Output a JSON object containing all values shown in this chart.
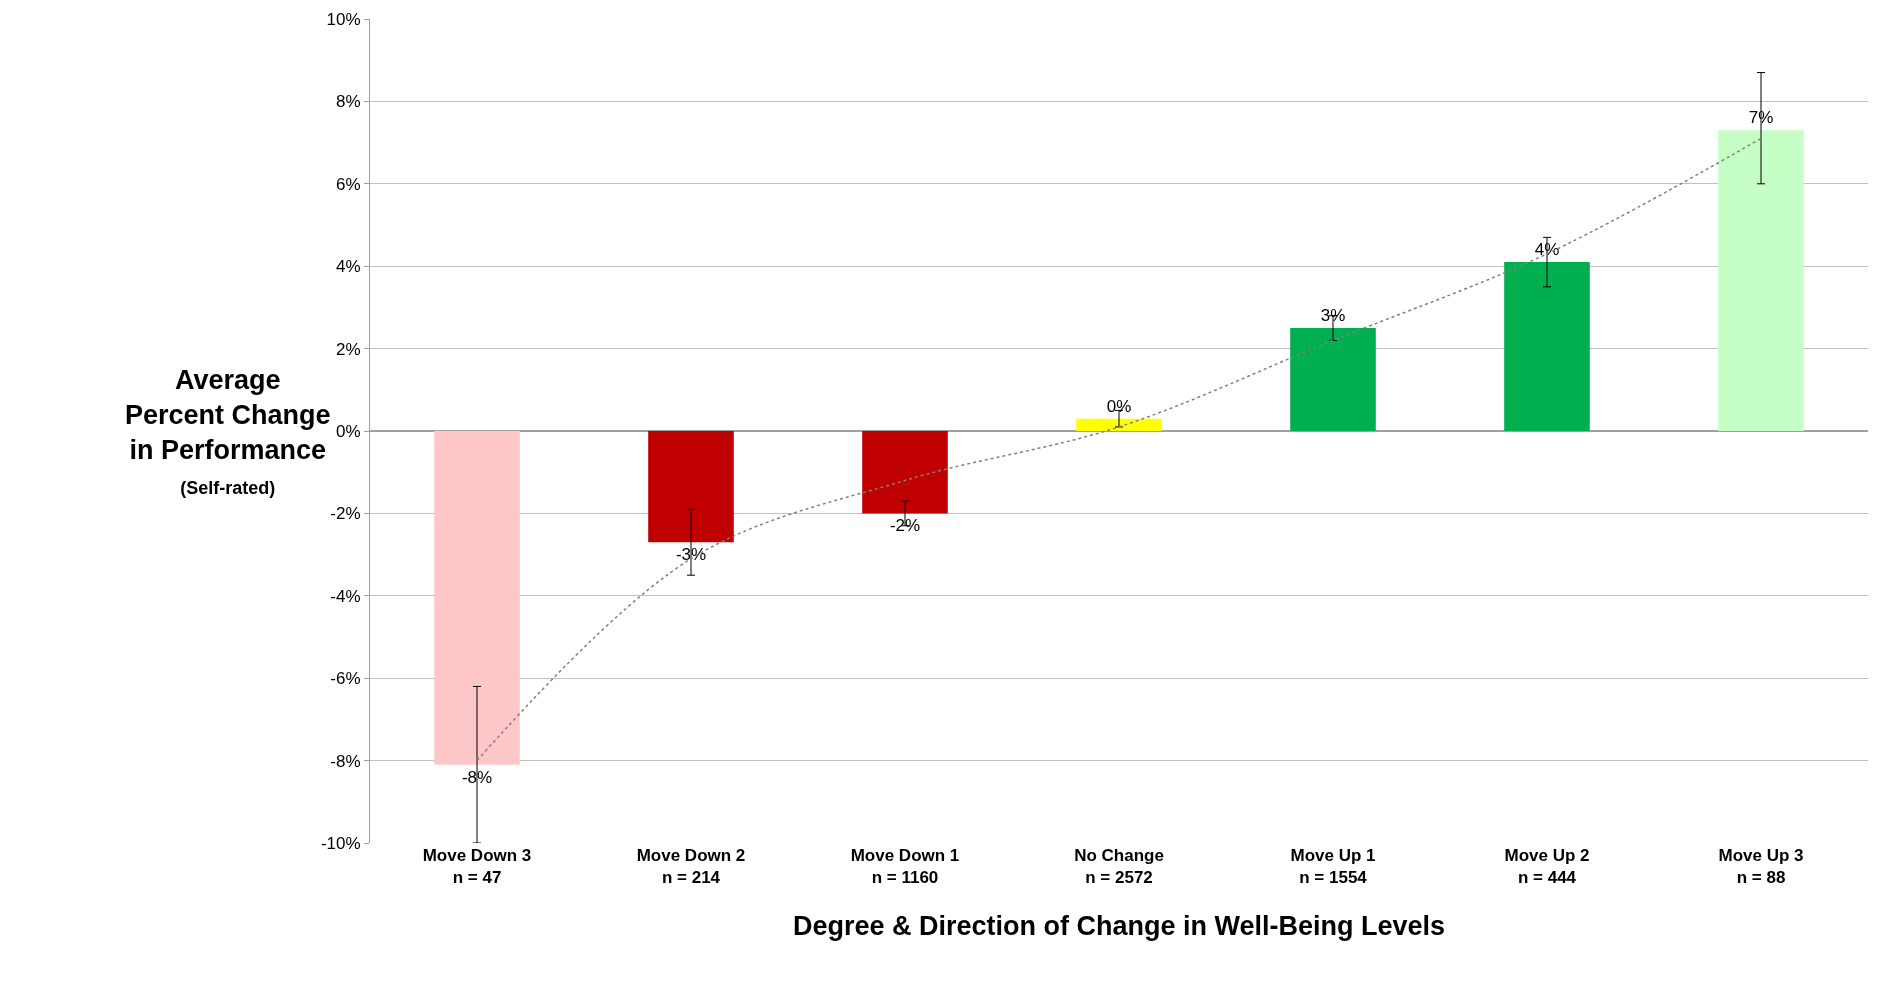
{
  "chart_data": {
    "type": "bar",
    "xlabel": "Degree & Direction of Change in Well-Being Levels",
    "ylabel": "Average\nPercent Change\nin Performance\n(Self-rated)",
    "categories": [
      "Move Down 3\nn = 47",
      "Move Down 2\nn = 214",
      "Move Down 1\nn = 1160",
      "No Change\nn = 2572",
      "Move Up 1\nn = 1554",
      "Move Up 2\nn = 444",
      "Move Up 3\nn = 88"
    ],
    "series": [
      {
        "colors": [
          "#ffc7c7",
          "#c00000",
          "#c00000",
          "#ffff00",
          "#00b050",
          "#00b050",
          "#c6ffc6"
        ],
        "values": [
          -8.1,
          -2.7,
          -2.0,
          0.3,
          2.5,
          4.1,
          7.3
        ],
        "value_labels": [
          "-8%",
          "-3%",
          "-2%",
          "0%",
          "3%",
          "4%",
          "7%"
        ],
        "errors": [
          [
            -10.0,
            -6.2
          ],
          [
            -3.5,
            -1.9
          ],
          [
            -2.3,
            -1.7
          ],
          [
            0.1,
            0.5
          ],
          [
            2.2,
            2.8
          ],
          [
            3.5,
            4.7
          ],
          [
            6.0,
            8.7
          ]
        ]
      },
      {
        "type": "line",
        "color": "#808080",
        "line_style": "dotted",
        "values": [
          -8.0,
          -3.1,
          -1.2,
          0.1,
          2.2,
          4.3,
          7.1
        ]
      }
    ],
    "ylim": [
      -10,
      10
    ],
    "yticks": [
      {
        "value": -10,
        "label": "-10%"
      },
      {
        "value": -8,
        "label": "-8%"
      },
      {
        "value": -6,
        "label": "-6%"
      },
      {
        "value": -4,
        "label": "-4%"
      },
      {
        "value": -2,
        "label": "-2%"
      },
      {
        "value": 0,
        "label": "0%"
      },
      {
        "value": 2,
        "label": "2%"
      },
      {
        "value": 4,
        "label": "4%"
      },
      {
        "value": 6,
        "label": "6%"
      },
      {
        "value": 8,
        "label": "8%"
      },
      {
        "value": 10,
        "label": "10%"
      }
    ],
    "grid": "y"
  }
}
